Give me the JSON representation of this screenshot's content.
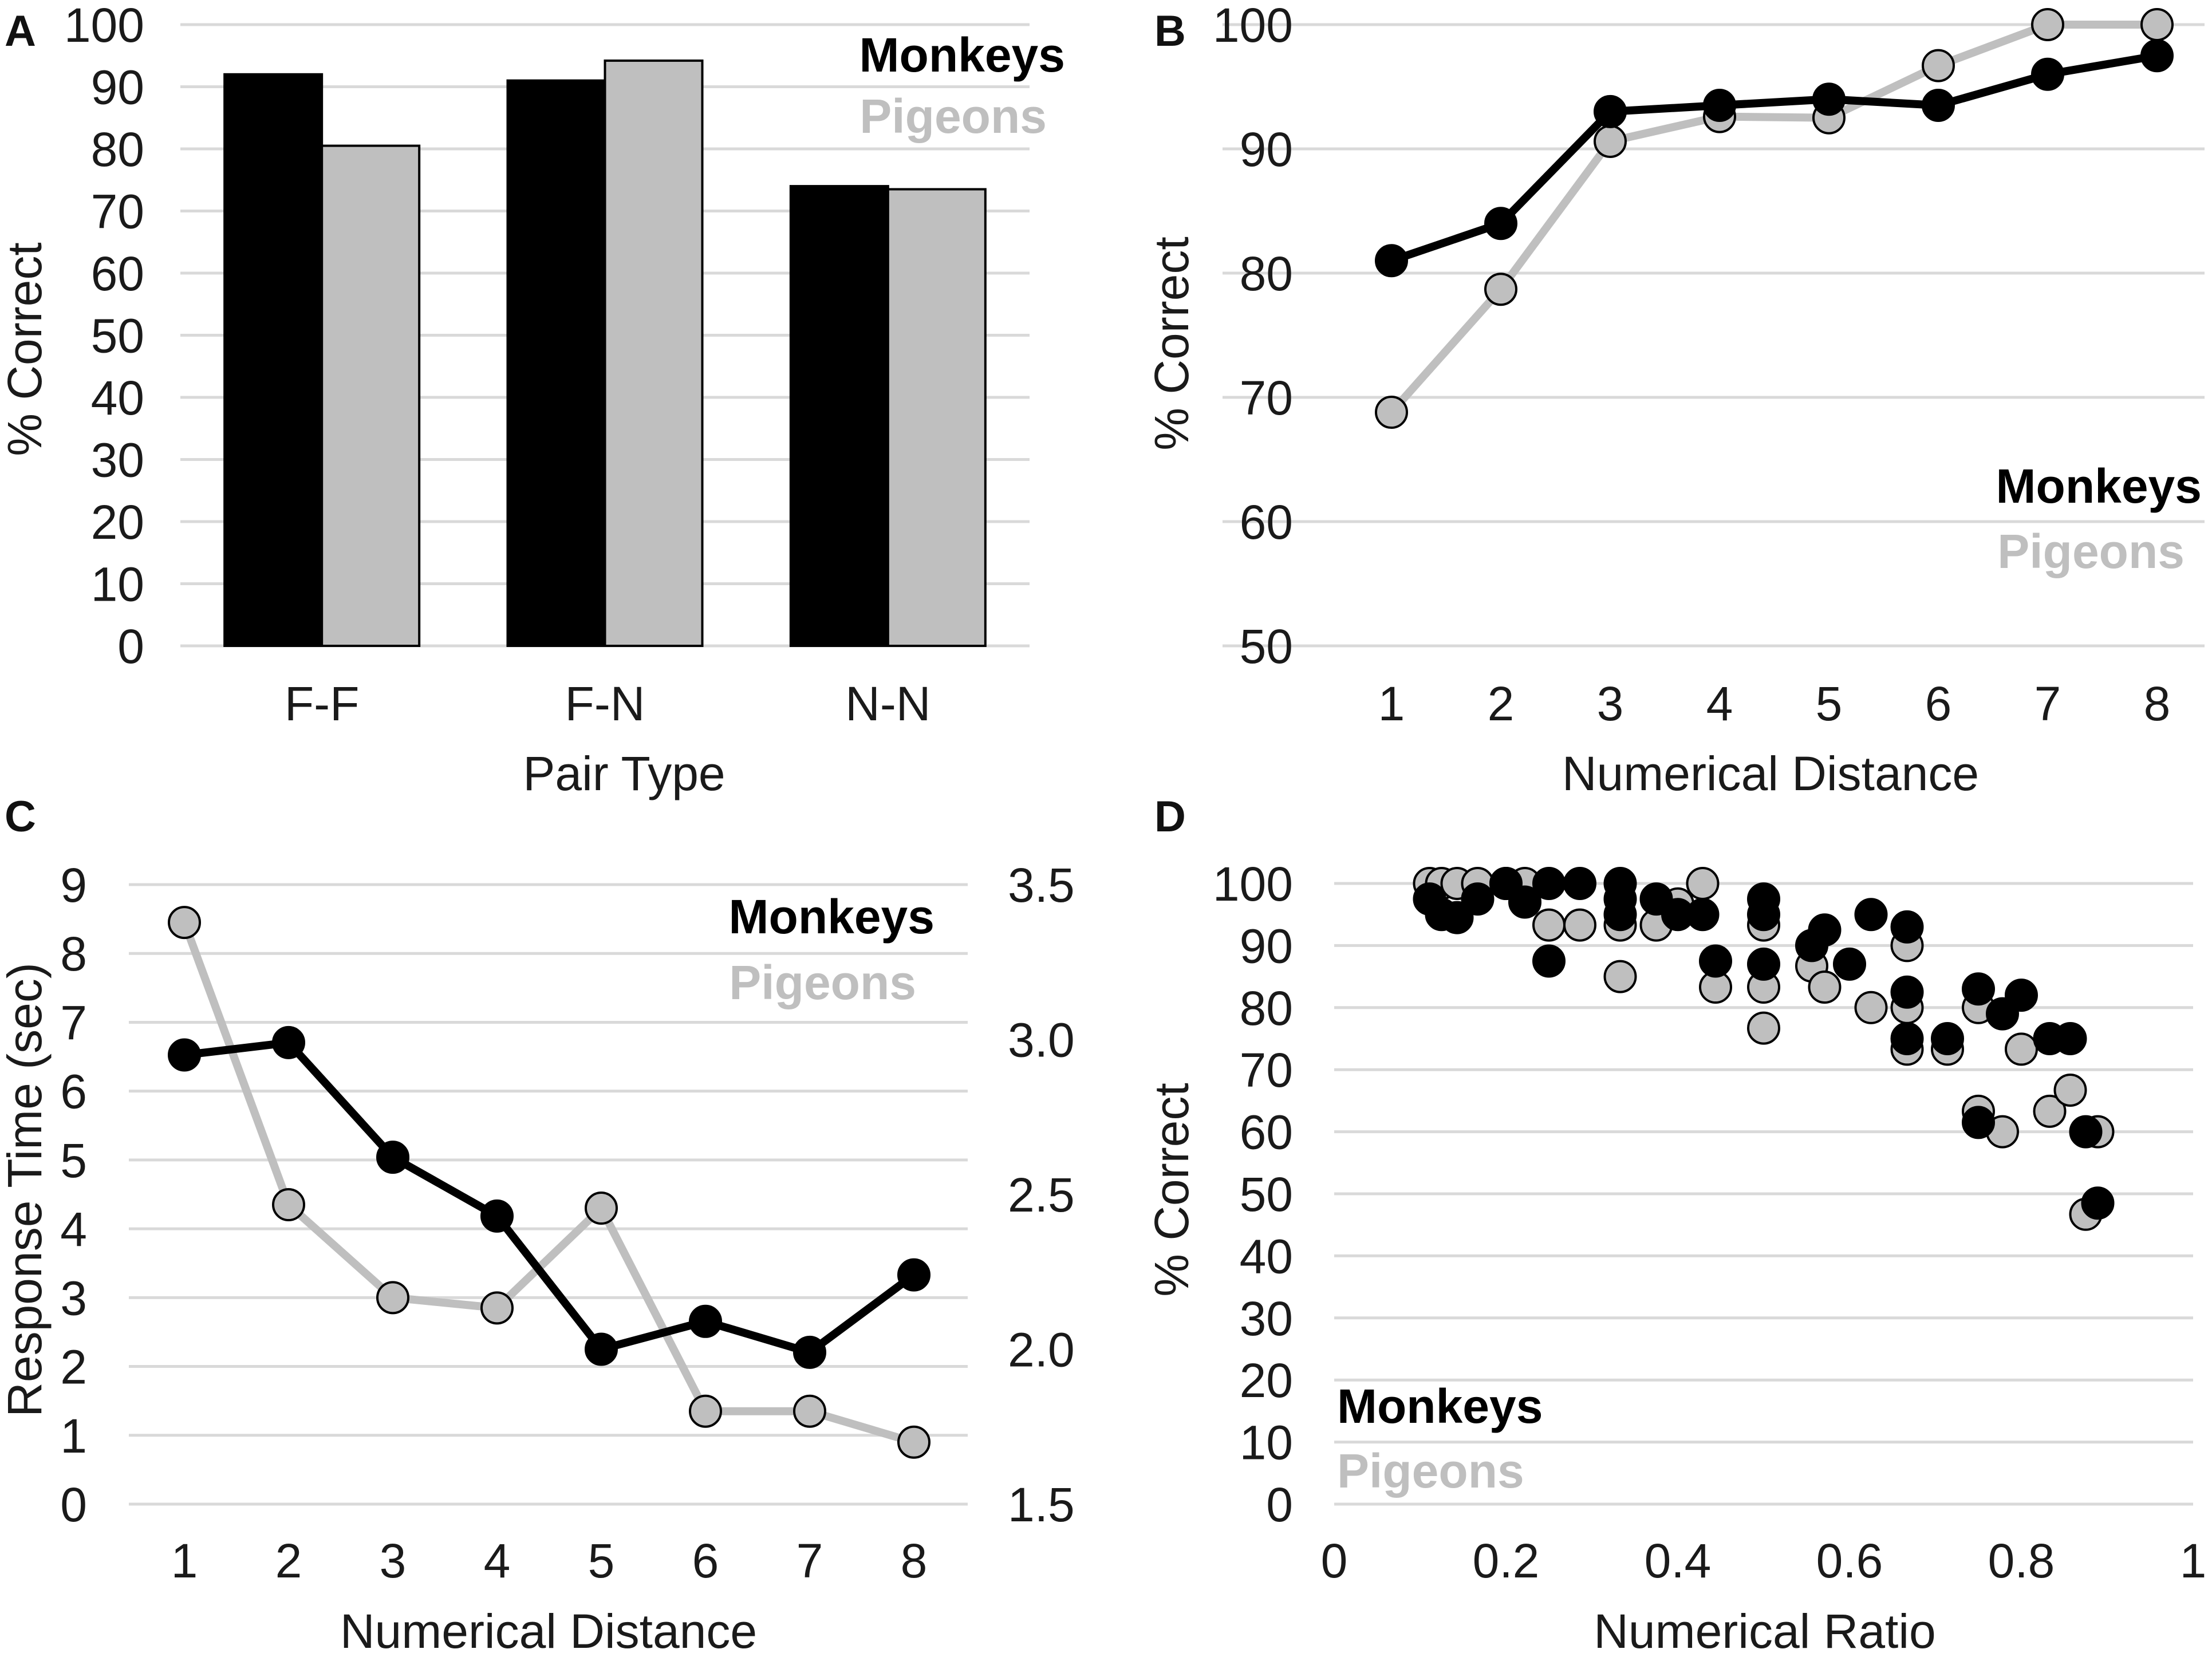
{
  "colors": {
    "monkeys": "#000000",
    "pigeons": "#bfbfbf",
    "grid": "#d9d9d9"
  },
  "chart_data": [
    {
      "panel": "A",
      "type": "bar",
      "xlabel": "Pair Type",
      "ylabel": "% Correct",
      "ylim": [
        0,
        100
      ],
      "yticks": [
        0,
        10,
        20,
        30,
        40,
        50,
        60,
        70,
        80,
        90,
        100
      ],
      "categories": [
        "F-F",
        "F-N",
        "N-N"
      ],
      "series": [
        {
          "name": "Monkeys",
          "values": [
            92,
            91,
            74
          ]
        },
        {
          "name": "Pigeons",
          "values": [
            80.5,
            94.2,
            73.5
          ]
        }
      ],
      "legend": [
        "Monkeys",
        "Pigeons"
      ]
    },
    {
      "panel": "B",
      "type": "line",
      "xlabel": "Numerical Distance",
      "ylabel": "% Correct",
      "ylim": [
        50,
        100
      ],
      "yticks": [
        50,
        60,
        70,
        80,
        90,
        100
      ],
      "x": [
        1,
        2,
        3,
        4,
        5,
        6,
        7,
        8
      ],
      "series": [
        {
          "name": "Monkeys",
          "values": [
            81,
            84,
            93,
            93.5,
            94,
            93.5,
            96,
            97.5
          ]
        },
        {
          "name": "Pigeons",
          "values": [
            68.8,
            78.7,
            90.6,
            92.6,
            92.5,
            96.7,
            100,
            100
          ]
        }
      ],
      "legend": [
        "Monkeys",
        "Pigeons"
      ]
    },
    {
      "panel": "C",
      "type": "line",
      "xlabel": "Numerical Distance",
      "ylabel": "Response Time (sec)",
      "ylim": [
        0,
        9
      ],
      "yticks": [
        0,
        1,
        2,
        3,
        4,
        5,
        6,
        7,
        8,
        9
      ],
      "ylim_right": [
        1.5,
        3.5
      ],
      "yticks_right": [
        "1.5",
        "2.0",
        "2.5",
        "3.0",
        "3.5"
      ],
      "x": [
        1,
        2,
        3,
        4,
        5,
        6,
        7,
        8
      ],
      "series": [
        {
          "name": "Monkeys",
          "axis": "right",
          "values": [
            2.95,
            2.99,
            2.62,
            2.43,
            2.0,
            2.09,
            1.99,
            2.24
          ]
        },
        {
          "name": "Pigeons",
          "axis": "left",
          "values": [
            8.45,
            4.35,
            3.0,
            2.85,
            4.3,
            1.35,
            1.35,
            0.9
          ]
        }
      ],
      "legend": [
        "Monkeys",
        "Pigeons"
      ]
    },
    {
      "panel": "D",
      "type": "scatter",
      "xlabel": "Numerical Ratio",
      "ylabel": "% Correct",
      "xlim": [
        0,
        1
      ],
      "xticks": [
        "0",
        "0.2",
        "0.4",
        "0.6",
        "0.8",
        "1"
      ],
      "ylim": [
        0,
        100
      ],
      "yticks": [
        0,
        10,
        20,
        30,
        40,
        50,
        60,
        70,
        80,
        90,
        100
      ],
      "series": [
        {
          "name": "Pigeons",
          "points": [
            [
              0.111,
              100
            ],
            [
              0.125,
              100
            ],
            [
              0.143,
              100
            ],
            [
              0.167,
              100
            ],
            [
              0.2,
              100
            ],
            [
              0.222,
              100
            ],
            [
              0.25,
              93.3
            ],
            [
              0.286,
              93.3
            ],
            [
              0.333,
              93.3
            ],
            [
              0.333,
              85
            ],
            [
              0.375,
              93.3
            ],
            [
              0.4,
              96.7
            ],
            [
              0.429,
              100
            ],
            [
              0.444,
              83.3
            ],
            [
              0.5,
              93.3
            ],
            [
              0.5,
              83.3
            ],
            [
              0.5,
              76.7
            ],
            [
              0.556,
              86.7
            ],
            [
              0.571,
              83.3
            ],
            [
              0.625,
              80
            ],
            [
              0.667,
              90
            ],
            [
              0.667,
              80
            ],
            [
              0.667,
              73.3
            ],
            [
              0.714,
              73.3
            ],
            [
              0.75,
              80
            ],
            [
              0.75,
              63.3
            ],
            [
              0.778,
              60
            ],
            [
              0.8,
              73.3
            ],
            [
              0.833,
              63.3
            ],
            [
              0.857,
              66.7
            ],
            [
              0.875,
              46.7
            ],
            [
              0.889,
              60
            ]
          ]
        },
        {
          "name": "Monkeys",
          "points": [
            [
              0.111,
              97.5
            ],
            [
              0.125,
              95
            ],
            [
              0.143,
              94.5
            ],
            [
              0.167,
              97.5
            ],
            [
              0.2,
              100
            ],
            [
              0.222,
              97
            ],
            [
              0.25,
              100
            ],
            [
              0.25,
              87.5
            ],
            [
              0.286,
              100
            ],
            [
              0.333,
              100
            ],
            [
              0.333,
              97.5
            ],
            [
              0.333,
              95
            ],
            [
              0.375,
              97.5
            ],
            [
              0.4,
              95
            ],
            [
              0.429,
              95
            ],
            [
              0.444,
              87.5
            ],
            [
              0.5,
              97.5
            ],
            [
              0.5,
              95
            ],
            [
              0.5,
              87
            ],
            [
              0.556,
              90
            ],
            [
              0.571,
              92.5
            ],
            [
              0.6,
              87
            ],
            [
              0.625,
              95
            ],
            [
              0.667,
              93
            ],
            [
              0.667,
              82.5
            ],
            [
              0.667,
              75
            ],
            [
              0.714,
              75
            ],
            [
              0.75,
              83
            ],
            [
              0.75,
              61.5
            ],
            [
              0.778,
              79
            ],
            [
              0.8,
              82
            ],
            [
              0.833,
              75
            ],
            [
              0.857,
              75
            ],
            [
              0.875,
              60
            ],
            [
              0.889,
              48.5
            ]
          ]
        }
      ],
      "legend": [
        "Monkeys",
        "Pigeons"
      ]
    }
  ]
}
